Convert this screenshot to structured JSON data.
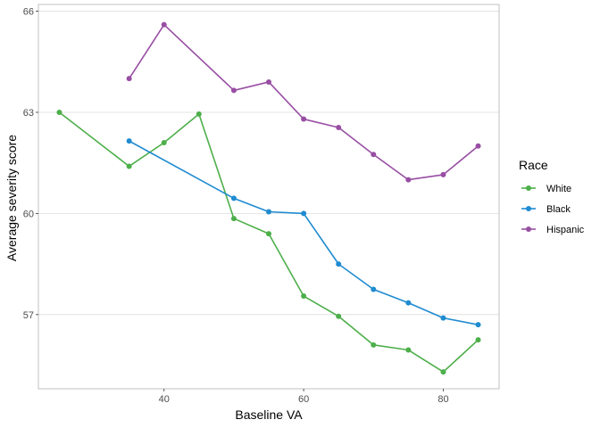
{
  "chart_data": {
    "type": "line",
    "xlabel": "Baseline VA",
    "ylabel": "Average severity score",
    "xlim": [
      22,
      88
    ],
    "ylim": [
      54.8,
      66.2
    ],
    "x_ticks": [
      40,
      60,
      80
    ],
    "y_ticks": [
      57,
      60,
      63,
      66
    ],
    "grid": "horizontal major",
    "legend": {
      "title": "Race",
      "position": "right"
    },
    "series": [
      {
        "name": "White",
        "color": "#4DAF4A",
        "points": [
          [
            25,
            63.0
          ],
          [
            35,
            61.4
          ],
          [
            40,
            62.1
          ],
          [
            45,
            62.95
          ],
          [
            50,
            59.85
          ],
          [
            55,
            59.4
          ],
          [
            60,
            57.55
          ],
          [
            65,
            56.95
          ],
          [
            70,
            56.1
          ],
          [
            75,
            55.95
          ],
          [
            80,
            55.3
          ],
          [
            85,
            56.25
          ]
        ]
      },
      {
        "name": "Black",
        "color": "#1F8BD0",
        "points": [
          [
            35,
            62.15
          ],
          [
            50,
            60.45
          ],
          [
            55,
            60.05
          ],
          [
            60,
            60.0
          ],
          [
            65,
            58.5
          ],
          [
            70,
            57.75
          ],
          [
            75,
            57.35
          ],
          [
            80,
            56.9
          ],
          [
            85,
            56.7
          ]
        ]
      },
      {
        "name": "Hispanic",
        "color": "#984EA3",
        "points": [
          [
            35,
            64.0
          ],
          [
            40,
            65.6
          ],
          [
            50,
            63.65
          ],
          [
            55,
            63.9
          ],
          [
            60,
            62.8
          ],
          [
            65,
            62.55
          ],
          [
            70,
            61.75
          ],
          [
            75,
            61.0
          ],
          [
            80,
            61.15
          ],
          [
            85,
            62.0
          ]
        ]
      }
    ]
  }
}
